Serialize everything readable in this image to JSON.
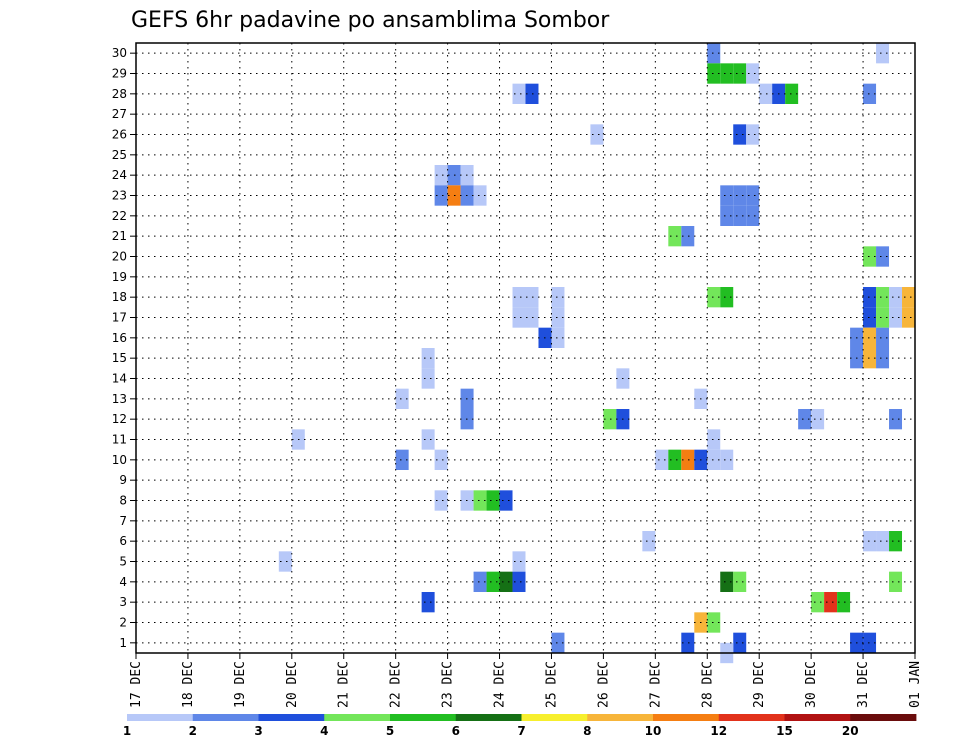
{
  "chart_data": {
    "type": "heatmap",
    "title": "GEFS 6hr padavine po ansamblima Sombor",
    "xlabel": "",
    "ylabel": "",
    "x_tick_labels": [
      "17 DEC",
      "18 DEC",
      "19 DEC",
      "20 DEC",
      "21 DEC",
      "22 DEC",
      "23 DEC",
      "24 DEC",
      "25 DEC",
      "26 DEC",
      "27 DEC",
      "28 DEC",
      "29 DEC",
      "30 DEC",
      "31 DEC",
      "01 JAN"
    ],
    "y_tick_labels": [
      "1",
      "2",
      "3",
      "4",
      "5",
      "6",
      "7",
      "8",
      "9",
      "10",
      "11",
      "12",
      "13",
      "14",
      "15",
      "16",
      "17",
      "18",
      "19",
      "20",
      "21",
      "22",
      "23",
      "24",
      "25",
      "26",
      "27",
      "28",
      "29",
      "30"
    ],
    "xlim_days": [
      0,
      15
    ],
    "ylim": [
      0.5,
      30.5
    ],
    "step_hours": 6,
    "grid": true,
    "colorbar": {
      "placement": "bottom",
      "labels": [
        "1",
        "2",
        "3",
        "4",
        "5",
        "6",
        "7",
        "8",
        "10",
        "12",
        "15",
        "20"
      ],
      "colors": [
        "#b7c8f8",
        "#5f87e8",
        "#1f4fdc",
        "#73e65a",
        "#22be22",
        "#157015",
        "#f7ef2d",
        "#f7b53a",
        "#f57e12",
        "#e2321b",
        "#b11212",
        "#6a0c0c"
      ]
    },
    "cells": [
      {
        "x": 11.0,
        "y": 30,
        "c": 2
      },
      {
        "x": 14.25,
        "y": 30,
        "c": 1
      },
      {
        "x": 11.0,
        "y": 29,
        "c": 5
      },
      {
        "x": 11.25,
        "y": 29,
        "c": 5
      },
      {
        "x": 11.5,
        "y": 29,
        "c": 5
      },
      {
        "x": 11.75,
        "y": 29,
        "c": 1
      },
      {
        "x": 7.25,
        "y": 28,
        "c": 1
      },
      {
        "x": 7.5,
        "y": 28,
        "c": 3
      },
      {
        "x": 12.0,
        "y": 28,
        "c": 1
      },
      {
        "x": 12.25,
        "y": 28,
        "c": 3
      },
      {
        "x": 12.5,
        "y": 28,
        "c": 5
      },
      {
        "x": 14.0,
        "y": 28,
        "c": 2
      },
      {
        "x": 8.75,
        "y": 26,
        "c": 1
      },
      {
        "x": 11.5,
        "y": 26,
        "c": 3
      },
      {
        "x": 11.75,
        "y": 26,
        "c": 1
      },
      {
        "x": 5.75,
        "y": 24,
        "c": 1
      },
      {
        "x": 6.0,
        "y": 24,
        "c": 2
      },
      {
        "x": 6.25,
        "y": 24,
        "c": 1
      },
      {
        "x": 5.75,
        "y": 23,
        "c": 2
      },
      {
        "x": 6.0,
        "y": 23,
        "c": 9
      },
      {
        "x": 6.25,
        "y": 23,
        "c": 2
      },
      {
        "x": 6.5,
        "y": 23,
        "c": 1
      },
      {
        "x": 11.25,
        "y": 23,
        "c": 2
      },
      {
        "x": 11.5,
        "y": 23,
        "c": 2
      },
      {
        "x": 11.75,
        "y": 23,
        "c": 2
      },
      {
        "x": 11.25,
        "y": 22,
        "c": 2
      },
      {
        "x": 11.5,
        "y": 22,
        "c": 2
      },
      {
        "x": 11.75,
        "y": 22,
        "c": 2
      },
      {
        "x": 10.25,
        "y": 21,
        "c": 4
      },
      {
        "x": 10.5,
        "y": 21,
        "c": 2
      },
      {
        "x": 14.0,
        "y": 20,
        "c": 4
      },
      {
        "x": 14.25,
        "y": 20,
        "c": 2
      },
      {
        "x": 7.25,
        "y": 18,
        "c": 1
      },
      {
        "x": 7.5,
        "y": 18,
        "c": 1
      },
      {
        "x": 8.0,
        "y": 18,
        "c": 1
      },
      {
        "x": 11.0,
        "y": 18,
        "c": 4
      },
      {
        "x": 11.25,
        "y": 18,
        "c": 5
      },
      {
        "x": 14.0,
        "y": 18,
        "c": 3
      },
      {
        "x": 14.25,
        "y": 18,
        "c": 4
      },
      {
        "x": 14.5,
        "y": 18,
        "c": 1
      },
      {
        "x": 14.75,
        "y": 18,
        "c": 8
      },
      {
        "x": 7.25,
        "y": 17,
        "c": 1
      },
      {
        "x": 7.5,
        "y": 17,
        "c": 1
      },
      {
        "x": 8.0,
        "y": 17,
        "c": 1
      },
      {
        "x": 14.0,
        "y": 17,
        "c": 3
      },
      {
        "x": 14.25,
        "y": 17,
        "c": 4
      },
      {
        "x": 14.5,
        "y": 17,
        "c": 1
      },
      {
        "x": 14.75,
        "y": 17,
        "c": 8
      },
      {
        "x": 7.75,
        "y": 16,
        "c": 3
      },
      {
        "x": 8.0,
        "y": 16,
        "c": 1
      },
      {
        "x": 13.75,
        "y": 16,
        "c": 2
      },
      {
        "x": 14.0,
        "y": 16,
        "c": 8
      },
      {
        "x": 14.25,
        "y": 16,
        "c": 2
      },
      {
        "x": 5.5,
        "y": 15,
        "c": 1
      },
      {
        "x": 13.75,
        "y": 15,
        "c": 2
      },
      {
        "x": 14.0,
        "y": 15,
        "c": 8
      },
      {
        "x": 14.25,
        "y": 15,
        "c": 2
      },
      {
        "x": 5.5,
        "y": 14,
        "c": 1
      },
      {
        "x": 9.25,
        "y": 14,
        "c": 1
      },
      {
        "x": 5.0,
        "y": 13,
        "c": 1
      },
      {
        "x": 6.25,
        "y": 13,
        "c": 2
      },
      {
        "x": 10.75,
        "y": 13,
        "c": 1
      },
      {
        "x": 6.25,
        "y": 12,
        "c": 2
      },
      {
        "x": 9.0,
        "y": 12,
        "c": 4
      },
      {
        "x": 9.25,
        "y": 12,
        "c": 3
      },
      {
        "x": 12.75,
        "y": 12,
        "c": 2
      },
      {
        "x": 13.0,
        "y": 12,
        "c": 1
      },
      {
        "x": 14.5,
        "y": 12,
        "c": 2
      },
      {
        "x": 3.0,
        "y": 11,
        "c": 1
      },
      {
        "x": 5.5,
        "y": 11,
        "c": 1
      },
      {
        "x": 11.0,
        "y": 11,
        "c": 1
      },
      {
        "x": 5.0,
        "y": 10,
        "c": 2
      },
      {
        "x": 5.75,
        "y": 10,
        "c": 1
      },
      {
        "x": 10.0,
        "y": 10,
        "c": 1
      },
      {
        "x": 10.25,
        "y": 10,
        "c": 5
      },
      {
        "x": 10.5,
        "y": 10,
        "c": 9
      },
      {
        "x": 10.75,
        "y": 10,
        "c": 3
      },
      {
        "x": 11.0,
        "y": 10,
        "c": 1
      },
      {
        "x": 11.25,
        "y": 10,
        "c": 1
      },
      {
        "x": 5.75,
        "y": 8,
        "c": 1
      },
      {
        "x": 6.25,
        "y": 8,
        "c": 1
      },
      {
        "x": 6.5,
        "y": 8,
        "c": 4
      },
      {
        "x": 6.75,
        "y": 8,
        "c": 5
      },
      {
        "x": 7.0,
        "y": 8,
        "c": 3
      },
      {
        "x": 9.75,
        "y": 6,
        "c": 1
      },
      {
        "x": 14.0,
        "y": 6,
        "c": 1
      },
      {
        "x": 14.25,
        "y": 6,
        "c": 1
      },
      {
        "x": 14.5,
        "y": 6,
        "c": 5
      },
      {
        "x": 2.75,
        "y": 5,
        "c": 1
      },
      {
        "x": 7.25,
        "y": 5,
        "c": 1
      },
      {
        "x": 6.5,
        "y": 4,
        "c": 2
      },
      {
        "x": 6.75,
        "y": 4,
        "c": 5
      },
      {
        "x": 7.0,
        "y": 4,
        "c": 6
      },
      {
        "x": 7.25,
        "y": 4,
        "c": 3
      },
      {
        "x": 11.25,
        "y": 4,
        "c": 6
      },
      {
        "x": 11.5,
        "y": 4,
        "c": 4
      },
      {
        "x": 14.5,
        "y": 4,
        "c": 4
      },
      {
        "x": 5.5,
        "y": 3,
        "c": 3
      },
      {
        "x": 13.0,
        "y": 3,
        "c": 4
      },
      {
        "x": 13.25,
        "y": 3,
        "c": 10
      },
      {
        "x": 13.5,
        "y": 3,
        "c": 5
      },
      {
        "x": 10.75,
        "y": 2,
        "c": 8
      },
      {
        "x": 11.0,
        "y": 2,
        "c": 4
      },
      {
        "x": 8.0,
        "y": 1,
        "c": 2
      },
      {
        "x": 10.5,
        "y": 1,
        "c": 3
      },
      {
        "x": 11.5,
        "y": 1,
        "c": 3
      },
      {
        "x": 13.75,
        "y": 1,
        "c": 3
      },
      {
        "x": 14.0,
        "y": 1,
        "c": 3
      },
      {
        "x": 11.25,
        "y": 0.5,
        "c": 1
      }
    ]
  }
}
